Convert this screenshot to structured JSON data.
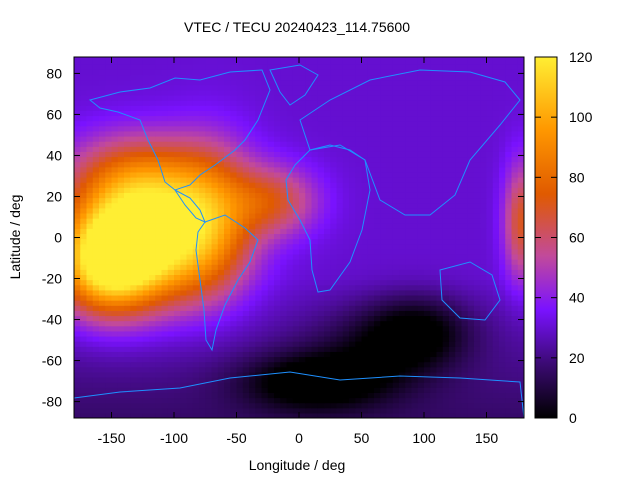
{
  "chart_data": {
    "type": "heatmap",
    "title": "VTEC / TECU 20240423_114.75600",
    "xlabel": "Longitude / deg",
    "ylabel": "Latitude / deg",
    "xlim": [
      -180,
      180
    ],
    "ylim": [
      -88,
      88
    ],
    "x_ticks": [
      -150,
      -100,
      -50,
      0,
      50,
      100,
      150
    ],
    "y_ticks": [
      -80,
      -60,
      -40,
      -20,
      0,
      20,
      40,
      60,
      80
    ],
    "colorbar": {
      "range": [
        0,
        120
      ],
      "ticks": [
        0,
        20,
        40,
        60,
        80,
        100,
        120
      ],
      "colormap": [
        "#000000",
        "#3b0a73",
        "#7a12ff",
        "#c24a9a",
        "#e05a00",
        "#ff9800",
        "#ffee33"
      ]
    },
    "features": [
      {
        "name": "peak",
        "lon": -120,
        "lat": 0,
        "value": 115
      },
      {
        "name": "peak-2",
        "lon": -155,
        "lat": -12,
        "value": 110
      },
      {
        "name": "high-band-north",
        "lon": -130,
        "lat": 30,
        "value": 80
      },
      {
        "name": "atlantic-tongue",
        "lon": -20,
        "lat": 18,
        "value": 70
      },
      {
        "name": "east-edge",
        "lon": 178,
        "lat": 8,
        "value": 70
      },
      {
        "name": "min-south",
        "lon": 95,
        "lat": -45,
        "value": 5
      },
      {
        "name": "min-south-2",
        "lon": 10,
        "lat": -70,
        "value": 3
      },
      {
        "name": "background-north",
        "lon": 60,
        "lat": 55,
        "value": 30
      },
      {
        "name": "background-indian",
        "lon": 80,
        "lat": 0,
        "value": 35
      }
    ],
    "grid": false,
    "overlay": "coastlines"
  }
}
